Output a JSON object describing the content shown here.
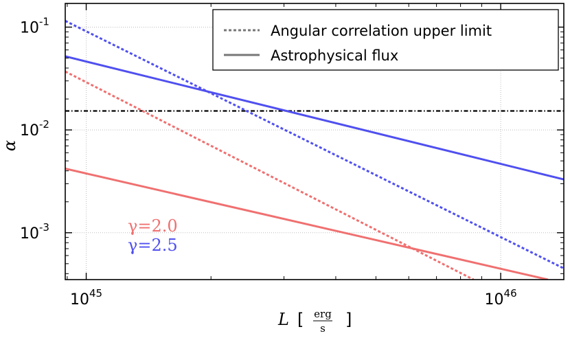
{
  "chart_data": {
    "type": "line",
    "xscale": "log",
    "yscale": "log",
    "xlim": [
      8.9e+44,
      1.42e+46
    ],
    "ylim": [
      0.00035,
      0.17
    ],
    "xlabel": "L",
    "xunit_num": "erg",
    "xunit_den": "s",
    "ylabel": "α",
    "grid": true,
    "legend_position": "top-right",
    "x_ticks": [
      {
        "value": 1e+45,
        "base": "10",
        "exp": "45"
      },
      {
        "value": 1e+46,
        "base": "10",
        "exp": "46"
      }
    ],
    "y_ticks": [
      {
        "value": 0.1,
        "base": "10",
        "exp": "-1"
      },
      {
        "value": 0.01,
        "base": "10",
        "exp": "-2"
      },
      {
        "value": 0.001,
        "base": "10",
        "exp": "-3"
      }
    ],
    "legend": [
      {
        "label": "Angular correlation upper limit",
        "style": "dotted"
      },
      {
        "label": "Astrophysical flux",
        "style": "solid"
      }
    ],
    "series": [
      {
        "gamma": "2.0",
        "kind": "flux",
        "style": "solid",
        "color": "#f07070",
        "points": [
          [
            8.9e+44,
            0.0042
          ],
          [
            1.3e+46,
            0.00035
          ]
        ]
      },
      {
        "gamma": "2.0",
        "kind": "angular",
        "style": "dotted",
        "color": "#f07070",
        "points": [
          [
            8.9e+44,
            0.037
          ],
          [
            8.6e+45,
            0.00035
          ]
        ]
      },
      {
        "gamma": "2.5",
        "kind": "flux",
        "style": "solid",
        "color": "#5050f0",
        "points": [
          [
            8.9e+44,
            0.052
          ],
          [
            1.42e+46,
            0.0033
          ]
        ]
      },
      {
        "gamma": "2.5",
        "kind": "angular",
        "style": "dotted",
        "color": "#5050f0",
        "points": [
          [
            8.9e+44,
            0.115
          ],
          [
            1.42e+46,
            0.00045
          ]
        ]
      }
    ],
    "hline": {
      "y": 0.0153,
      "style": "dashdot",
      "color": "#000000"
    },
    "annotations": [
      {
        "text": "γ=2.0",
        "color": "#f07070"
      },
      {
        "text": "γ=2.5",
        "color": "#5050f0"
      }
    ]
  }
}
